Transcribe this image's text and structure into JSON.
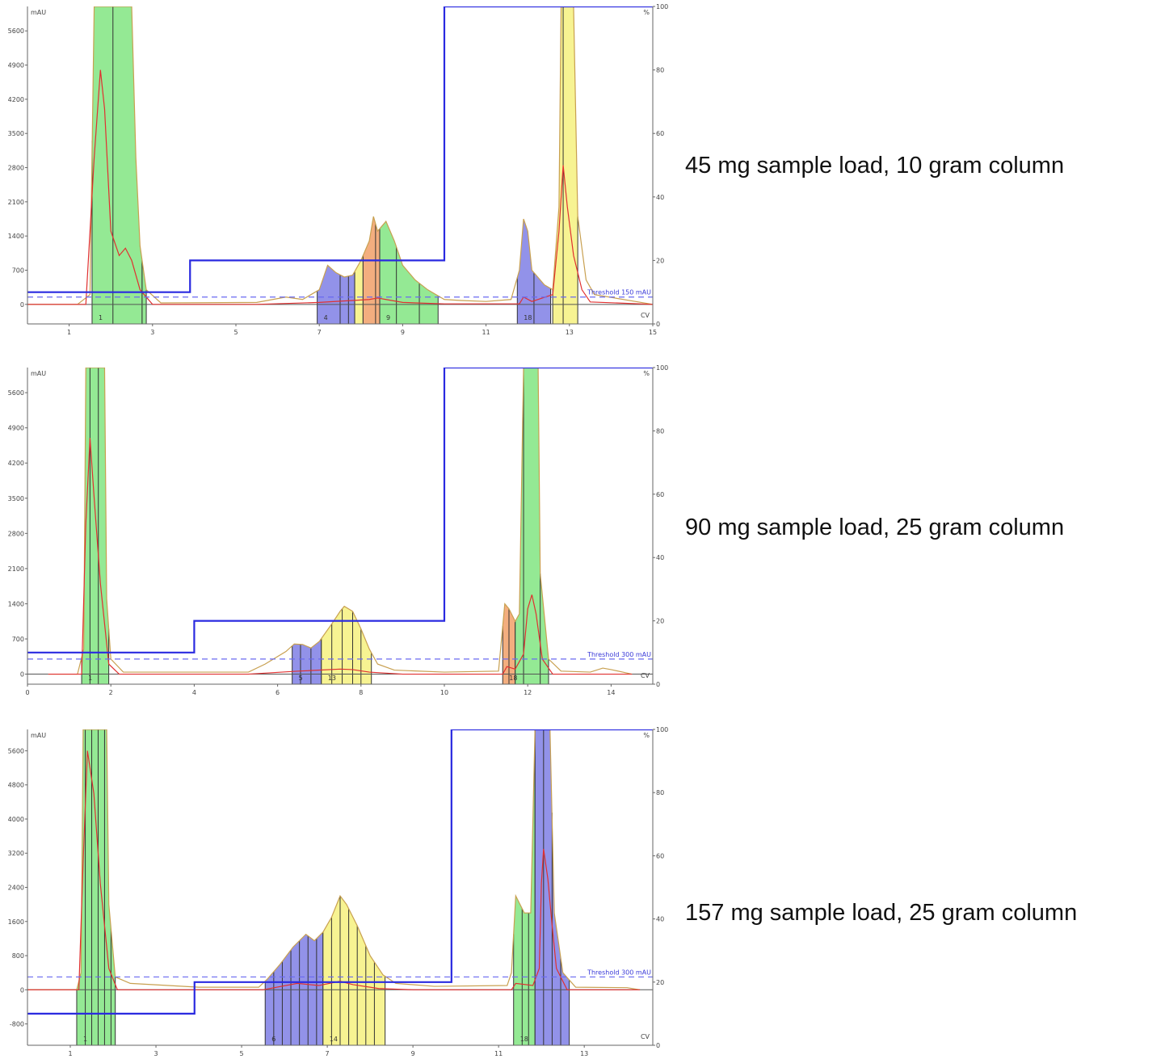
{
  "colors": {
    "gradient": "#2a2ae0",
    "threshold": "#6a6af0",
    "absorbance": "#c8a050",
    "second_trace": "#e03030",
    "fraction_green": "#8ee88e",
    "fraction_blue": "#8c8ce8",
    "fraction_orange": "#f2aa78",
    "fraction_yellow": "#f7f28c"
  },
  "chart_data": [
    {
      "type": "area",
      "caption": "45 mg sample load, 10 gram column",
      "ylabel": "mAU",
      "y2label": "%",
      "xlabel": "CV",
      "threshold_label": "Threshold 150 mAU",
      "threshold": 150,
      "xlim": [
        0,
        15
      ],
      "ylim": [
        -400,
        6100
      ],
      "y2lim": [
        0,
        100
      ],
      "x_ticks": [
        1,
        3,
        5,
        7,
        9,
        11,
        13,
        15
      ],
      "y_ticks": [
        0,
        700,
        1400,
        2100,
        2800,
        3500,
        4200,
        4900,
        5600
      ],
      "y2_ticks": [
        0,
        20,
        40,
        60,
        80,
        100
      ],
      "gradient": {
        "x": [
          0,
          3.9,
          3.9,
          10,
          10,
          15
        ],
        "y": [
          10,
          10,
          20,
          20,
          100,
          100
        ]
      },
      "absorbance": [
        [
          0,
          0
        ],
        [
          1.2,
          0
        ],
        [
          1.5,
          200
        ],
        [
          1.6,
          6500
        ],
        [
          2.5,
          6500
        ],
        [
          2.6,
          3000
        ],
        [
          2.7,
          1200
        ],
        [
          2.85,
          300
        ],
        [
          3.2,
          30
        ],
        [
          5.5,
          40
        ],
        [
          6.2,
          150
        ],
        [
          6.6,
          100
        ],
        [
          7.0,
          300
        ],
        [
          7.2,
          800
        ],
        [
          7.4,
          650
        ],
        [
          7.6,
          560
        ],
        [
          7.8,
          600
        ],
        [
          8.0,
          900
        ],
        [
          8.2,
          1300
        ],
        [
          8.3,
          1800
        ],
        [
          8.4,
          1500
        ],
        [
          8.5,
          1600
        ],
        [
          8.6,
          1700
        ],
        [
          8.8,
          1300
        ],
        [
          9.0,
          800
        ],
        [
          9.3,
          500
        ],
        [
          9.6,
          300
        ],
        [
          10.0,
          100
        ],
        [
          10.4,
          80
        ],
        [
          11.0,
          60
        ],
        [
          11.6,
          100
        ],
        [
          11.8,
          700
        ],
        [
          11.9,
          1750
        ],
        [
          12.0,
          1500
        ],
        [
          12.1,
          700
        ],
        [
          12.4,
          400
        ],
        [
          12.6,
          300
        ],
        [
          12.75,
          2000
        ],
        [
          12.8,
          6500
        ],
        [
          13.1,
          6500
        ],
        [
          13.2,
          1800
        ],
        [
          13.4,
          500
        ],
        [
          13.6,
          200
        ],
        [
          15,
          0
        ]
      ],
      "second_trace": [
        [
          0,
          0
        ],
        [
          1.4,
          0
        ],
        [
          1.6,
          3000
        ],
        [
          1.75,
          4800
        ],
        [
          1.85,
          4000
        ],
        [
          2.0,
          1500
        ],
        [
          2.2,
          1000
        ],
        [
          2.35,
          1150
        ],
        [
          2.5,
          900
        ],
        [
          2.7,
          300
        ],
        [
          3.0,
          0
        ],
        [
          5.5,
          0
        ],
        [
          7.0,
          40
        ],
        [
          8.2,
          100
        ],
        [
          8.4,
          130
        ],
        [
          8.6,
          100
        ],
        [
          9.0,
          40
        ],
        [
          10,
          10
        ],
        [
          11.8,
          10
        ],
        [
          11.9,
          150
        ],
        [
          12.1,
          60
        ],
        [
          12.6,
          200
        ],
        [
          12.75,
          1500
        ],
        [
          12.85,
          2850
        ],
        [
          12.95,
          2000
        ],
        [
          13.1,
          1000
        ],
        [
          13.3,
          300
        ],
        [
          13.5,
          50
        ],
        [
          15,
          0
        ]
      ],
      "fractions": [
        {
          "x0": 1.55,
          "x1": 2.75,
          "color": "green",
          "label": "1",
          "dividers": [
            2.05
          ]
        },
        {
          "x0": 2.75,
          "x1": 2.85,
          "color": "green",
          "label": "",
          "dividers": []
        },
        {
          "x0": 6.95,
          "x1": 7.85,
          "color": "blue",
          "label": "4",
          "dividers": [
            7.5,
            7.7
          ]
        },
        {
          "x0": 7.85,
          "x1": 8.05,
          "color": "yellow",
          "label": "",
          "dividers": []
        },
        {
          "x0": 8.05,
          "x1": 8.45,
          "color": "orange",
          "label": "",
          "dividers": [
            8.35
          ]
        },
        {
          "x0": 8.45,
          "x1": 9.85,
          "color": "green",
          "label": "9",
          "dividers": [
            8.85,
            9.4
          ]
        },
        {
          "x0": 11.75,
          "x1": 12.55,
          "color": "blue",
          "label": "18",
          "dividers": [
            12.15
          ]
        },
        {
          "x0": 12.6,
          "x1": 13.2,
          "color": "yellow",
          "label": "",
          "dividers": [
            12.85
          ]
        }
      ]
    },
    {
      "type": "area",
      "caption": "90 mg sample load, 25 gram column",
      "ylabel": "mAU",
      "y2label": "%",
      "xlabel": "CV",
      "threshold_label": "Threshold 300 mAU",
      "threshold": 300,
      "xlim": [
        0,
        15
      ],
      "ylim": [
        -200,
        6100
      ],
      "y2lim": [
        0,
        100
      ],
      "x_ticks": [
        0,
        2,
        4,
        6,
        8,
        10,
        12,
        14
      ],
      "y_ticks": [
        0,
        700,
        1400,
        2100,
        2800,
        3500,
        4200,
        4900,
        5600
      ],
      "y2_ticks": [
        0,
        20,
        40,
        60,
        80,
        100
      ],
      "gradient": {
        "x": [
          0,
          4.0,
          4.0,
          10,
          10,
          15
        ],
        "y": [
          10,
          10,
          20,
          20,
          100,
          100
        ]
      },
      "absorbance": [
        [
          0.5,
          0
        ],
        [
          1.2,
          0
        ],
        [
          1.35,
          500
        ],
        [
          1.4,
          6500
        ],
        [
          1.85,
          6500
        ],
        [
          1.9,
          1500
        ],
        [
          2.0,
          300
        ],
        [
          2.3,
          40
        ],
        [
          5.3,
          40
        ],
        [
          5.7,
          200
        ],
        [
          6.2,
          450
        ],
        [
          6.4,
          600
        ],
        [
          6.6,
          590
        ],
        [
          6.8,
          520
        ],
        [
          7.0,
          650
        ],
        [
          7.3,
          1000
        ],
        [
          7.5,
          1250
        ],
        [
          7.6,
          1350
        ],
        [
          7.8,
          1250
        ],
        [
          8.0,
          900
        ],
        [
          8.2,
          500
        ],
        [
          8.4,
          200
        ],
        [
          8.8,
          80
        ],
        [
          10,
          40
        ],
        [
          11.3,
          60
        ],
        [
          11.45,
          1400
        ],
        [
          11.55,
          1300
        ],
        [
          11.7,
          1050
        ],
        [
          11.8,
          1200
        ],
        [
          11.9,
          6500
        ],
        [
          12.25,
          6500
        ],
        [
          12.3,
          2000
        ],
        [
          12.5,
          300
        ],
        [
          12.8,
          60
        ],
        [
          13.5,
          40
        ],
        [
          13.8,
          120
        ],
        [
          14.0,
          90
        ],
        [
          14.5,
          0
        ]
      ],
      "second_trace": [
        [
          0.5,
          0
        ],
        [
          1.3,
          0
        ],
        [
          1.4,
          3000
        ],
        [
          1.5,
          4700
        ],
        [
          1.6,
          3500
        ],
        [
          1.75,
          1800
        ],
        [
          1.95,
          200
        ],
        [
          2.2,
          0
        ],
        [
          5.3,
          0
        ],
        [
          6.5,
          60
        ],
        [
          7.5,
          100
        ],
        [
          7.8,
          90
        ],
        [
          8.2,
          40
        ],
        [
          9,
          0
        ],
        [
          11.4,
          0
        ],
        [
          11.5,
          150
        ],
        [
          11.7,
          100
        ],
        [
          11.9,
          400
        ],
        [
          12.0,
          1300
        ],
        [
          12.1,
          1580
        ],
        [
          12.2,
          1200
        ],
        [
          12.35,
          300
        ],
        [
          12.6,
          0
        ],
        [
          14.5,
          0
        ]
      ],
      "fractions": [
        {
          "x0": 1.3,
          "x1": 1.95,
          "color": "green",
          "label": "1",
          "dividers": [
            1.5,
            1.7
          ]
        },
        {
          "x0": 6.35,
          "x1": 7.05,
          "color": "blue",
          "label": "5",
          "dividers": [
            6.55,
            6.8
          ]
        },
        {
          "x0": 7.05,
          "x1": 8.25,
          "color": "yellow",
          "label": "13",
          "dividers": [
            7.3,
            7.55,
            7.8,
            8.0
          ]
        },
        {
          "x0": 11.4,
          "x1": 11.7,
          "color": "orange",
          "label": "18",
          "dividers": [
            11.55
          ]
        },
        {
          "x0": 11.7,
          "x1": 12.5,
          "color": "green",
          "label": "",
          "dividers": [
            11.9,
            12.3
          ]
        }
      ]
    },
    {
      "type": "area",
      "caption": "157 mg sample load, 25 gram column",
      "ylabel": "mAU",
      "y2label": "%",
      "xlabel": "CV",
      "threshold_label": "Threshold 300 mAU",
      "threshold": 300,
      "xlim": [
        0,
        14.6
      ],
      "ylim": [
        -1300,
        6100
      ],
      "y2lim": [
        0,
        100
      ],
      "x_ticks": [
        1,
        3,
        5,
        7,
        9,
        11,
        13
      ],
      "y_ticks": [
        -800,
        0,
        800,
        1600,
        2400,
        3200,
        4000,
        4800,
        5600
      ],
      "y2_ticks": [
        0,
        20,
        40,
        60,
        80,
        100
      ],
      "gradient": {
        "x": [
          0,
          3.9,
          3.9,
          9.9,
          9.9,
          14.6
        ],
        "y": [
          10,
          10,
          20,
          20,
          100,
          100
        ]
      },
      "absorbance": [
        [
          0,
          0
        ],
        [
          1.15,
          0
        ],
        [
          1.25,
          400
        ],
        [
          1.3,
          6500
        ],
        [
          1.85,
          6500
        ],
        [
          1.9,
          2000
        ],
        [
          2.05,
          300
        ],
        [
          2.4,
          150
        ],
        [
          4.0,
          60
        ],
        [
          5.4,
          60
        ],
        [
          5.6,
          250
        ],
        [
          5.9,
          600
        ],
        [
          6.2,
          1000
        ],
        [
          6.5,
          1300
        ],
        [
          6.7,
          1150
        ],
        [
          6.9,
          1350
        ],
        [
          7.1,
          1700
        ],
        [
          7.3,
          2200
        ],
        [
          7.45,
          2000
        ],
        [
          7.7,
          1500
        ],
        [
          8.0,
          800
        ],
        [
          8.3,
          350
        ],
        [
          8.6,
          150
        ],
        [
          9.5,
          80
        ],
        [
          11.2,
          100
        ],
        [
          11.3,
          400
        ],
        [
          11.4,
          2200
        ],
        [
          11.6,
          1800
        ],
        [
          11.75,
          1800
        ],
        [
          11.85,
          6500
        ],
        [
          12.2,
          6500
        ],
        [
          12.3,
          1800
        ],
        [
          12.5,
          400
        ],
        [
          12.8,
          60
        ],
        [
          14.0,
          50
        ],
        [
          14.3,
          0
        ]
      ],
      "second_trace": [
        [
          0,
          0
        ],
        [
          1.2,
          0
        ],
        [
          1.3,
          3000
        ],
        [
          1.4,
          5600
        ],
        [
          1.55,
          4600
        ],
        [
          1.7,
          2500
        ],
        [
          1.9,
          500
        ],
        [
          2.1,
          0
        ],
        [
          5.5,
          0
        ],
        [
          6.3,
          150
        ],
        [
          6.8,
          100
        ],
        [
          7.3,
          200
        ],
        [
          7.6,
          120
        ],
        [
          8.2,
          30
        ],
        [
          9,
          0
        ],
        [
          11.3,
          0
        ],
        [
          11.4,
          150
        ],
        [
          11.8,
          100
        ],
        [
          11.95,
          500
        ],
        [
          12.0,
          2500
        ],
        [
          12.05,
          3300
        ],
        [
          12.15,
          2600
        ],
        [
          12.25,
          1500
        ],
        [
          12.35,
          500
        ],
        [
          12.6,
          0
        ],
        [
          14.3,
          0
        ]
      ],
      "fractions": [
        {
          "x0": 1.15,
          "x1": 2.05,
          "color": "green",
          "label": "1",
          "dividers": [
            1.35,
            1.5,
            1.65,
            1.8,
            1.95
          ]
        },
        {
          "x0": 5.55,
          "x1": 6.9,
          "color": "blue",
          "label": "6",
          "dividers": [
            5.75,
            5.95,
            6.15,
            6.35,
            6.55,
            6.75
          ]
        },
        {
          "x0": 6.9,
          "x1": 8.35,
          "color": "yellow",
          "label": "14",
          "dividers": [
            7.1,
            7.3,
            7.5,
            7.7,
            7.9,
            8.1
          ]
        },
        {
          "x0": 11.35,
          "x1": 11.85,
          "color": "green",
          "label": "18",
          "dividers": [
            11.55,
            11.7
          ]
        },
        {
          "x0": 11.85,
          "x1": 12.65,
          "color": "blue",
          "label": "",
          "dividers": [
            12.05,
            12.25,
            12.45
          ]
        }
      ]
    }
  ]
}
